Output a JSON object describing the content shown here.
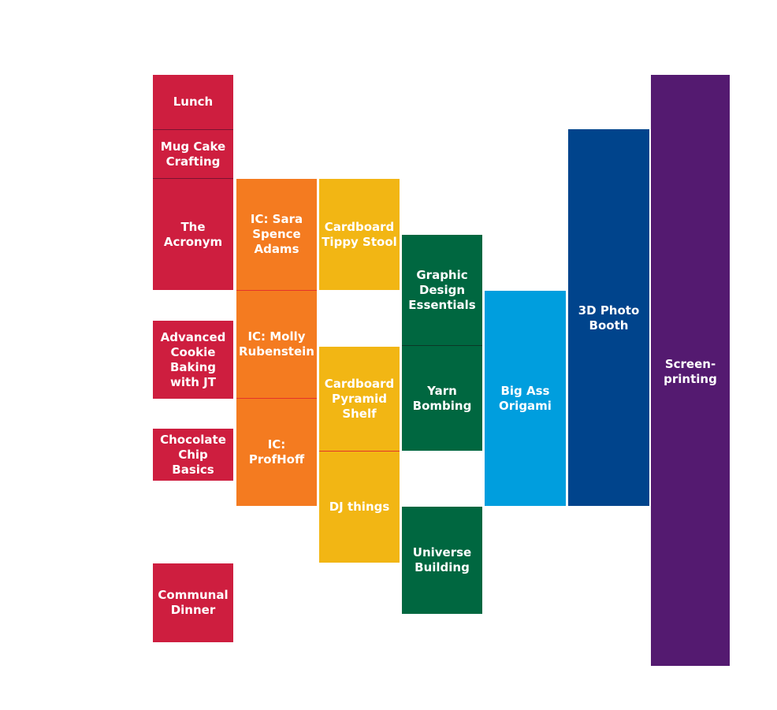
{
  "colors": {
    "red": "#ce1e3f",
    "orange": "#f47b20",
    "yellow": "#f2b614",
    "green": "#006740",
    "light_blue": "#009ede",
    "dark_blue": "#00448c",
    "purple": "#541a70",
    "divider_dark": "#7a1230",
    "divider_red": "#e4342a",
    "divider_green": "#0b3826"
  },
  "sessions": {
    "lunch": "Lunch",
    "mug_cake": "Mug Cake\nCrafting",
    "acronym": "The\nAcronym",
    "cookie": "Advanced\nCookie\nBaking\nwith JT",
    "chocolate_chip": "Chocolate\nChip Basics",
    "communal_dinner": "Communal\nDinner",
    "ic_sara": "IC: Sara\nSpence\nAdams",
    "ic_molly": "IC: Molly\nRubenstein",
    "ic_profhoff": "IC: ProfHoff",
    "tippy_stool": "Cardboard\nTippy Stool",
    "pyramid_shelf": "Cardboard\nPyramid\nShelf",
    "dj_things": "DJ things",
    "graphic_design": "Graphic\nDesign\nEssentials",
    "yarn_bombing": "Yarn\nBombing",
    "universe_building": "Universe\nBuilding",
    "origami": "Big Ass\nOrigami",
    "photo_booth": "3D Photo\nBooth",
    "screenprinting": "Screen-\nprinting"
  }
}
